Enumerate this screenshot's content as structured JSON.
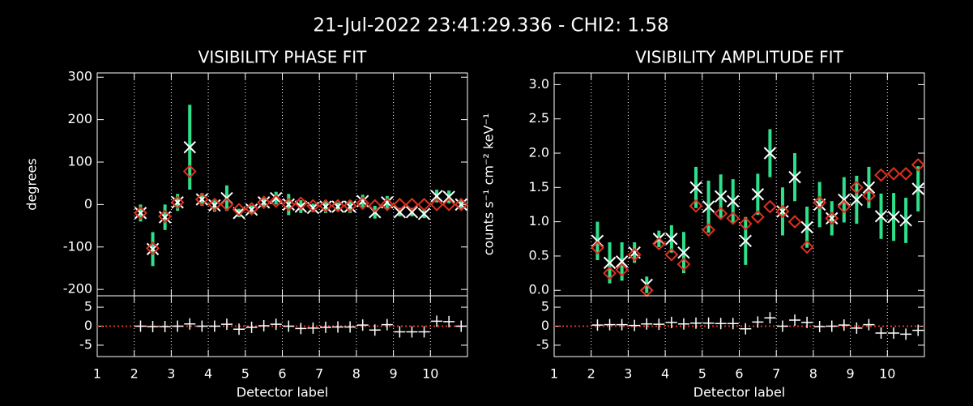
{
  "title": "21-Jul-2022 23:41:29.336 - CHI2: 1.58",
  "chart_data": [
    {
      "type": "errorbar",
      "title": "VISIBILITY PHASE FIT",
      "y_label": "degrees",
      "x": [
        2.17,
        2.5,
        2.83,
        3.17,
        3.5,
        3.83,
        4.17,
        4.5,
        4.83,
        5.17,
        5.5,
        5.83,
        6.17,
        6.5,
        6.83,
        7.17,
        7.5,
        7.83,
        8.17,
        8.5,
        8.83,
        9.17,
        9.5,
        9.83,
        10.17,
        10.5,
        10.83
      ],
      "xlim": [
        1,
        11
      ],
      "ylim": [
        -215,
        310
      ],
      "yticks": [
        -200,
        -100,
        0,
        100,
        200,
        300
      ],
      "grid": true,
      "series": [
        {
          "marker": "x",
          "color": "#ffffff",
          "error_color": "#2ee08a",
          "values": [
            -20,
            -105,
            -30,
            5,
            135,
            12,
            -2,
            15,
            -20,
            -12,
            5,
            15,
            0,
            -5,
            -8,
            -5,
            -5,
            -5,
            8,
            -18,
            5,
            -18,
            -18,
            -22,
            20,
            18,
            0
          ],
          "errors": [
            20,
            40,
            30,
            20,
            100,
            15,
            15,
            30,
            10,
            10,
            10,
            15,
            25,
            15,
            10,
            15,
            10,
            15,
            15,
            15,
            15,
            10,
            10,
            10,
            15,
            15,
            10
          ]
        },
        {
          "marker": "diamond",
          "color": "#e0301e",
          "values": [
            -20,
            -103,
            -28,
            5,
            78,
            12,
            0,
            0,
            -12,
            -10,
            5,
            8,
            0,
            3,
            -3,
            -3,
            -3,
            -3,
            3,
            -3,
            0,
            0,
            0,
            0,
            0,
            0,
            0
          ]
        }
      ]
    },
    {
      "type": "residual",
      "x_label": "Detector label",
      "x": [
        2.17,
        2.5,
        2.83,
        3.17,
        3.5,
        3.83,
        4.17,
        4.5,
        4.83,
        5.17,
        5.5,
        5.83,
        6.17,
        6.5,
        6.83,
        7.17,
        7.5,
        7.83,
        8.17,
        8.5,
        8.83,
        9.17,
        9.5,
        9.83,
        10.17,
        10.5,
        10.83
      ],
      "xlim": [
        1,
        11
      ],
      "xticks": [
        1,
        2,
        3,
        4,
        5,
        6,
        7,
        8,
        9,
        10
      ],
      "ylim": [
        -8,
        8
      ],
      "yticks": [
        -5,
        0,
        5
      ],
      "grid": true,
      "series": [
        {
          "marker": "plus",
          "color": "#ffffff",
          "values": [
            0,
            -0.1,
            -0.1,
            0,
            0.6,
            0,
            0,
            0.5,
            -0.8,
            -0.3,
            0.1,
            0.5,
            0,
            -0.6,
            -0.5,
            -0.3,
            -0.2,
            -0.2,
            0.3,
            -1,
            0.4,
            -1.5,
            -1.5,
            -1.5,
            1.3,
            1.2,
            0
          ]
        }
      ],
      "zero_line_color": "#e0301e"
    },
    {
      "type": "errorbar",
      "title": "VISIBILITY AMPLITUDE FIT",
      "y_label": "counts s⁻¹ cm⁻² keV⁻¹",
      "x": [
        2.17,
        2.5,
        2.83,
        3.17,
        3.5,
        3.83,
        4.17,
        4.5,
        4.83,
        5.17,
        5.5,
        5.83,
        6.17,
        6.5,
        6.83,
        7.17,
        7.5,
        7.83,
        8.17,
        8.5,
        8.83,
        9.17,
        9.5,
        9.83,
        10.17,
        10.5,
        10.83
      ],
      "xlim": [
        1,
        11
      ],
      "ylim": [
        -0.08,
        3.17
      ],
      "yticks": [
        {
          "value": 0,
          "label": "0.0"
        },
        {
          "value": 0.5,
          "label": "0.5"
        },
        {
          "value": 1,
          "label": "1.0"
        },
        {
          "value": 1.5,
          "label": "1.5"
        },
        {
          "value": 2,
          "label": "2.0"
        },
        {
          "value": 2.5,
          "label": "2.5"
        },
        {
          "value": 3,
          "label": "3.0"
        }
      ],
      "grid": true,
      "series": [
        {
          "marker": "x",
          "color": "#ffffff",
          "error_color": "#2ee08a",
          "values": [
            0.72,
            0.4,
            0.42,
            0.55,
            0.08,
            0.75,
            0.75,
            0.55,
            1.5,
            1.22,
            1.37,
            1.3,
            0.72,
            1.4,
            2.0,
            1.15,
            1.65,
            0.92,
            1.25,
            1.05,
            1.32,
            1.32,
            1.5,
            1.08,
            1.07,
            1.02,
            1.48
          ],
          "errors": [
            0.28,
            0.3,
            0.28,
            0.15,
            0.12,
            0.12,
            0.2,
            0.3,
            0.3,
            0.38,
            0.32,
            0.32,
            0.35,
            0.3,
            0.35,
            0.35,
            0.35,
            0.3,
            0.33,
            0.25,
            0.33,
            0.35,
            0.3,
            0.33,
            0.35,
            0.33,
            0.33
          ]
        },
        {
          "marker": "diamond",
          "color": "#e0301e",
          "values": [
            0.62,
            0.25,
            0.3,
            0.52,
            0.0,
            0.68,
            0.52,
            0.38,
            1.23,
            0.88,
            1.12,
            1.05,
            0.97,
            1.07,
            1.22,
            1.15,
            1.0,
            0.63,
            1.28,
            1.05,
            1.22,
            1.5,
            1.38,
            1.68,
            1.7,
            1.7,
            1.83
          ]
        }
      ]
    },
    {
      "type": "residual",
      "x_label": "Detector label",
      "x": [
        2.17,
        2.5,
        2.83,
        3.17,
        3.5,
        3.83,
        4.17,
        4.5,
        4.83,
        5.17,
        5.5,
        5.83,
        6.17,
        6.5,
        6.83,
        7.17,
        7.5,
        7.83,
        8.17,
        8.5,
        8.83,
        9.17,
        9.5,
        9.83,
        10.17,
        10.5,
        10.83
      ],
      "xlim": [
        1,
        11
      ],
      "xticks": [
        1,
        2,
        3,
        4,
        5,
        6,
        7,
        8,
        9,
        10
      ],
      "ylim": [
        -8,
        8
      ],
      "yticks": [
        -5,
        0,
        5
      ],
      "grid": true,
      "series": [
        {
          "marker": "plus",
          "color": "#ffffff",
          "values": [
            0.3,
            0.4,
            0.4,
            0.2,
            0.6,
            0.5,
            1,
            0.6,
            0.8,
            0.8,
            0.7,
            0.7,
            -0.7,
            1.1,
            2.2,
            0,
            1.6,
            1,
            -0.1,
            0,
            0.3,
            -0.5,
            0.4,
            -1.8,
            -1.8,
            -2.1,
            -1.1
          ]
        }
      ],
      "zero_line_color": "#e0301e"
    }
  ]
}
